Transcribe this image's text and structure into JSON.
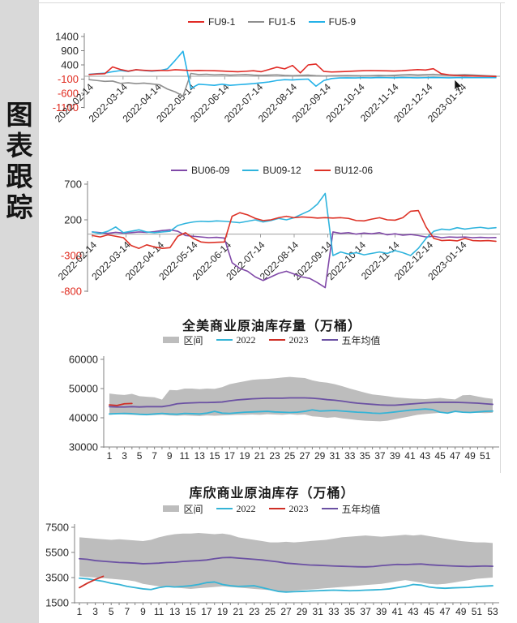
{
  "colors": {
    "negative_tick": "#e02a1e",
    "positive_tick": "#262626",
    "axis": "#808080",
    "zero_line": "#a0a0a0",
    "frame": "#d9d9d9",
    "sidebar_bg": "#d9d9d9",
    "band": "#bdbdbd"
  },
  "sidebar": {
    "title": "图表跟踪",
    "title_chars": [
      "图",
      "表",
      "跟",
      "踪"
    ]
  },
  "chart_data": [
    {
      "type": "line",
      "title": "",
      "n_points": 53,
      "ylim": [
        -1100,
        1400
      ],
      "yticks": [
        1400,
        900,
        400,
        -100,
        -600,
        -1100
      ],
      "x_labels": [
        "2022-02-14",
        "2022-03-14",
        "2022-04-14",
        "2022-05-14",
        "2022-06-14",
        "2022-07-14",
        "2022-08-14",
        "2022-09-14",
        "2022-10-14",
        "2022-11-14",
        "2022-12-14",
        "2023-01-14"
      ],
      "legend": [
        {
          "label": "FU9-1",
          "color": "#e12b26",
          "swatch": "line"
        },
        {
          "label": "FU1-5",
          "color": "#8f8f8f",
          "swatch": "line"
        },
        {
          "label": "FU5-9",
          "color": "#25b2e8",
          "swatch": "line"
        }
      ],
      "series": [
        {
          "name": "FU1-5",
          "color": "#8f8f8f",
          "values": [
            -120,
            -150,
            -180,
            -170,
            -250,
            -230,
            -260,
            -240,
            -270,
            -300,
            -450,
            -550,
            -700,
            100,
            60,
            70,
            50,
            60,
            40,
            50,
            60,
            40,
            30,
            40,
            50,
            30,
            20,
            30,
            40,
            20,
            10,
            15,
            20,
            25,
            20,
            15,
            20,
            30,
            25,
            35,
            50,
            60,
            45,
            55,
            65,
            50,
            40,
            45,
            55,
            45,
            30,
            15,
            5
          ]
        },
        {
          "name": "FU5-9",
          "color": "#25b2e8",
          "values": [
            70,
            90,
            110,
            160,
            200,
            170,
            230,
            200,
            180,
            200,
            260,
            560,
            880,
            -430,
            -280,
            -300,
            -320,
            -280,
            -320,
            -300,
            -280,
            -260,
            -230,
            -200,
            -150,
            -120,
            -130,
            -110,
            -100,
            -350,
            -150,
            -80,
            -60,
            -55,
            -60,
            -50,
            -55,
            -45,
            -50,
            -55,
            -45,
            -50,
            -55,
            -50,
            -45,
            -50,
            -55,
            -50,
            -45,
            -50,
            -48,
            -45,
            -50
          ]
        },
        {
          "name": "FU9-1",
          "color": "#e12b26",
          "values": [
            60,
            80,
            90,
            330,
            240,
            180,
            230,
            210,
            195,
            210,
            200,
            230,
            215,
            200,
            205,
            200,
            195,
            185,
            170,
            160,
            175,
            195,
            160,
            240,
            320,
            260,
            380,
            120,
            400,
            430,
            170,
            150,
            160,
            170,
            185,
            195,
            200,
            195,
            190,
            185,
            195,
            215,
            235,
            220,
            265,
            90,
            50,
            25,
            15,
            10,
            5,
            0,
            -10
          ]
        }
      ]
    },
    {
      "type": "line",
      "title": "",
      "n_points": 53,
      "ylim": [
        -800,
        700
      ],
      "yticks": [
        700,
        200,
        -300,
        -800
      ],
      "x_labels": [
        "2022-02-14",
        "2022-03-14",
        "2022-04-14",
        "2022-05-14",
        "2022-06-14",
        "2022-07-14",
        "2022-08-14",
        "2022-09-14",
        "2022-10-14",
        "2022-11-14",
        "2022-12-14",
        "2023-01-14"
      ],
      "legend": [
        {
          "label": "BU06-09",
          "color": "#8049a8",
          "swatch": "line"
        },
        {
          "label": "BU09-12",
          "color": "#2fb4dd",
          "swatch": "line"
        },
        {
          "label": "BU12-06",
          "color": "#dd3226",
          "swatch": "line"
        }
      ],
      "series": [
        {
          "name": "BU06-09",
          "color": "#8049a8",
          "values": [
            30,
            20,
            10,
            25,
            15,
            20,
            30,
            25,
            35,
            50,
            60,
            40,
            -20,
            -30,
            -40,
            -50,
            -45,
            -55,
            -400,
            -480,
            -520,
            -600,
            -650,
            -600,
            -550,
            -520,
            -560,
            -600,
            -620,
            -680,
            -750,
            30,
            10,
            20,
            0,
            15,
            5,
            20,
            -10,
            5,
            -15,
            -5,
            -20,
            -40,
            -30,
            -50,
            -40,
            -45,
            -40,
            -50,
            -45,
            -50,
            -48
          ]
        },
        {
          "name": "BU09-12",
          "color": "#2fb4dd",
          "values": [
            30,
            10,
            40,
            100,
            20,
            40,
            60,
            30,
            20,
            30,
            40,
            120,
            150,
            170,
            180,
            175,
            185,
            180,
            170,
            160,
            180,
            200,
            170,
            190,
            220,
            200,
            230,
            280,
            330,
            420,
            570,
            -300,
            -250,
            -280,
            -260,
            -290,
            -270,
            -250,
            -270,
            -230,
            -260,
            -300,
            -200,
            -60,
            40,
            70,
            60,
            90,
            70,
            85,
            95,
            80,
            90
          ]
        },
        {
          "name": "BU12-06",
          "color": "#dd3226",
          "values": [
            -20,
            -40,
            -10,
            -30,
            -50,
            -160,
            -200,
            -150,
            -180,
            -200,
            -190,
            -30,
            20,
            -60,
            -110,
            -120,
            -115,
            -110,
            250,
            300,
            270,
            220,
            190,
            200,
            230,
            250,
            230,
            240,
            235,
            225,
            230,
            225,
            230,
            220,
            190,
            185,
            210,
            230,
            200,
            195,
            230,
            320,
            330,
            100,
            -60,
            -90,
            -85,
            -95,
            -60,
            -90,
            -95,
            -90,
            -100
          ]
        }
      ]
    },
    {
      "type": "line",
      "title": "全美商业原油库存量（万桶）",
      "n_points": 52,
      "ylim": [
        30000,
        60000
      ],
      "yticks": [
        60000,
        50000,
        40000,
        30000
      ],
      "x_labels": [
        "1",
        "3",
        "5",
        "7",
        "9",
        "11",
        "13",
        "15",
        "17",
        "19",
        "21",
        "23",
        "25",
        "27",
        "29",
        "31",
        "33",
        "35",
        "37",
        "39",
        "41",
        "43",
        "45",
        "47",
        "49",
        "51"
      ],
      "legend": [
        {
          "label": "区间",
          "color": "#bdbdbd",
          "swatch": "band"
        },
        {
          "label": "2022",
          "color": "#35b4d6",
          "swatch": "line"
        },
        {
          "label": "2023",
          "color": "#cf2f26",
          "swatch": "line"
        },
        {
          "label": "五年均值",
          "color": "#6b51a3",
          "swatch": "line"
        }
      ],
      "band": {
        "name": "区间",
        "color": "#bdbdbd",
        "upper": [
          48300,
          48000,
          47800,
          48200,
          47400,
          47200,
          47000,
          46200,
          49500,
          49400,
          50000,
          50000,
          49800,
          50000,
          49900,
          50500,
          51500,
          52000,
          52500,
          53000,
          53200,
          53300,
          53500,
          53800,
          54000,
          53800,
          53600,
          52800,
          52300,
          52000,
          51500,
          50800,
          50000,
          49300,
          48600,
          48000,
          47700,
          47400,
          47000,
          46800,
          46600,
          46500,
          46400,
          46600,
          46800,
          46500,
          46300,
          47700,
          47800,
          47300,
          46800,
          46500
        ],
        "lower": [
          41000,
          41200,
          41100,
          41000,
          40900,
          40800,
          40900,
          41000,
          40800,
          40700,
          40800,
          40700,
          40600,
          40800,
          40700,
          40800,
          40900,
          41000,
          41000,
          41100,
          41000,
          41200,
          41100,
          41000,
          41200,
          41000,
          41100,
          40500,
          40300,
          40000,
          40200,
          39800,
          39500,
          39200,
          39000,
          38900,
          38800,
          39000,
          39500,
          40000,
          40500,
          41000,
          41300,
          41500,
          41700,
          41800,
          41900,
          42000,
          41800,
          41700,
          41600,
          41700
        ]
      },
      "series": [
        {
          "name": "2022",
          "color": "#35b4d6",
          "values": [
            41300,
            41400,
            41500,
            41400,
            41200,
            41100,
            41300,
            41500,
            41300,
            41200,
            41500,
            41400,
            41300,
            41600,
            42200,
            41600,
            41500,
            41700,
            41900,
            42000,
            42100,
            42200,
            42000,
            41900,
            41800,
            41900,
            42200,
            42700,
            42300,
            42400,
            42500,
            42300,
            42100,
            41900,
            41800,
            41600,
            41500,
            41700,
            42000,
            42300,
            42600,
            42800,
            43000,
            42800,
            41900,
            41600,
            42200,
            41900,
            41800,
            42000,
            42200,
            42300
          ]
        },
        {
          "name": "五年均值",
          "color": "#6b51a3",
          "values": [
            43800,
            43700,
            43700,
            43800,
            43700,
            43800,
            43800,
            43800,
            44200,
            44800,
            45000,
            45100,
            45200,
            45200,
            45300,
            45400,
            45800,
            46100,
            46300,
            46500,
            46600,
            46700,
            46700,
            46700,
            46800,
            46800,
            46800,
            46700,
            46500,
            46200,
            46000,
            45700,
            45300,
            45000,
            44800,
            44600,
            44400,
            44300,
            44300,
            44500,
            44700,
            44900,
            45100,
            45200,
            45300,
            45300,
            45300,
            45200,
            45100,
            45000,
            44800,
            44600
          ]
        },
        {
          "name": "2023",
          "color": "#cf2f26",
          "values": [
            44400,
            44200,
            44800,
            44900
          ]
        }
      ]
    },
    {
      "type": "line",
      "title": "库欣商业原油库存（万桶）",
      "n_points": 53,
      "ylim": [
        1500,
        7500
      ],
      "yticks": [
        7500,
        5500,
        3500,
        1500
      ],
      "x_labels": [
        "1",
        "3",
        "5",
        "7",
        "9",
        "11",
        "13",
        "15",
        "17",
        "19",
        "21",
        "23",
        "25",
        "27",
        "29",
        "31",
        "33",
        "35",
        "37",
        "39",
        "41",
        "43",
        "45",
        "47",
        "49",
        "51",
        "53"
      ],
      "legend": [
        {
          "label": "区间",
          "color": "#bdbdbd",
          "swatch": "band"
        },
        {
          "label": "2022",
          "color": "#35b4d6",
          "swatch": "line"
        },
        {
          "label": "2023",
          "color": "#cf2f26",
          "swatch": "line"
        },
        {
          "label": "五年均值",
          "color": "#6b51a3",
          "swatch": "line"
        }
      ],
      "band": {
        "name": "区间",
        "color": "#bdbdbd",
        "upper": [
          6700,
          6650,
          6600,
          6550,
          6500,
          6550,
          6500,
          6450,
          6400,
          6500,
          6700,
          6850,
          6950,
          7000,
          7000,
          7050,
          7000,
          6950,
          7000,
          6900,
          6700,
          6600,
          6500,
          6400,
          6300,
          6300,
          6350,
          6300,
          6350,
          6400,
          6450,
          6500,
          6600,
          6700,
          6750,
          6800,
          6850,
          6800,
          6750,
          6800,
          6850,
          6900,
          6850,
          6900,
          6800,
          6700,
          6600,
          6500,
          6400,
          6350,
          6300,
          6300,
          6250
        ],
        "lower": [
          3600,
          3550,
          3500,
          3450,
          3400,
          3350,
          3300,
          3200,
          3000,
          2900,
          2800,
          2750,
          2700,
          2650,
          2600,
          2650,
          2700,
          2750,
          2800,
          2750,
          2700,
          2650,
          2600,
          2550,
          2500,
          2450,
          2400,
          2450,
          2500,
          2550,
          2600,
          2650,
          2700,
          2750,
          2800,
          2850,
          2900,
          2950,
          3000,
          3100,
          3200,
          3300,
          3200,
          3100,
          3000,
          2950,
          3000,
          3100,
          3200,
          3300,
          3400,
          3450,
          3500
        ]
      },
      "series": [
        {
          "name": "2022",
          "color": "#35b4d6",
          "values": [
            3450,
            3400,
            3300,
            3200,
            3050,
            2950,
            2800,
            2700,
            2600,
            2550,
            2700,
            2800,
            2750,
            2800,
            2850,
            2950,
            3100,
            3150,
            2950,
            2850,
            2800,
            2820,
            2850,
            2700,
            2550,
            2400,
            2350,
            2380,
            2400,
            2430,
            2450,
            2480,
            2500,
            2480,
            2450,
            2470,
            2500,
            2520,
            2550,
            2600,
            2700,
            2800,
            2950,
            2900,
            2750,
            2680,
            2650,
            2680,
            2700,
            2720,
            2780,
            2820,
            2850
          ]
        },
        {
          "name": "五年均值",
          "color": "#6b51a3",
          "values": [
            5000,
            4950,
            4850,
            4800,
            4750,
            4700,
            4680,
            4650,
            4600,
            4620,
            4650,
            4700,
            4720,
            4780,
            4820,
            4850,
            4900,
            5000,
            5080,
            5100,
            5050,
            5000,
            4950,
            4900,
            4820,
            4750,
            4650,
            4600,
            4550,
            4500,
            4480,
            4450,
            4420,
            4400,
            4380,
            4360,
            4350,
            4380,
            4450,
            4500,
            4550,
            4530,
            4560,
            4580,
            4520,
            4480,
            4450,
            4420,
            4400,
            4380,
            4400,
            4420,
            4400
          ]
        },
        {
          "name": "2023",
          "color": "#cf2f26",
          "values": [
            2700,
            3050,
            3350,
            3600
          ]
        }
      ]
    }
  ]
}
